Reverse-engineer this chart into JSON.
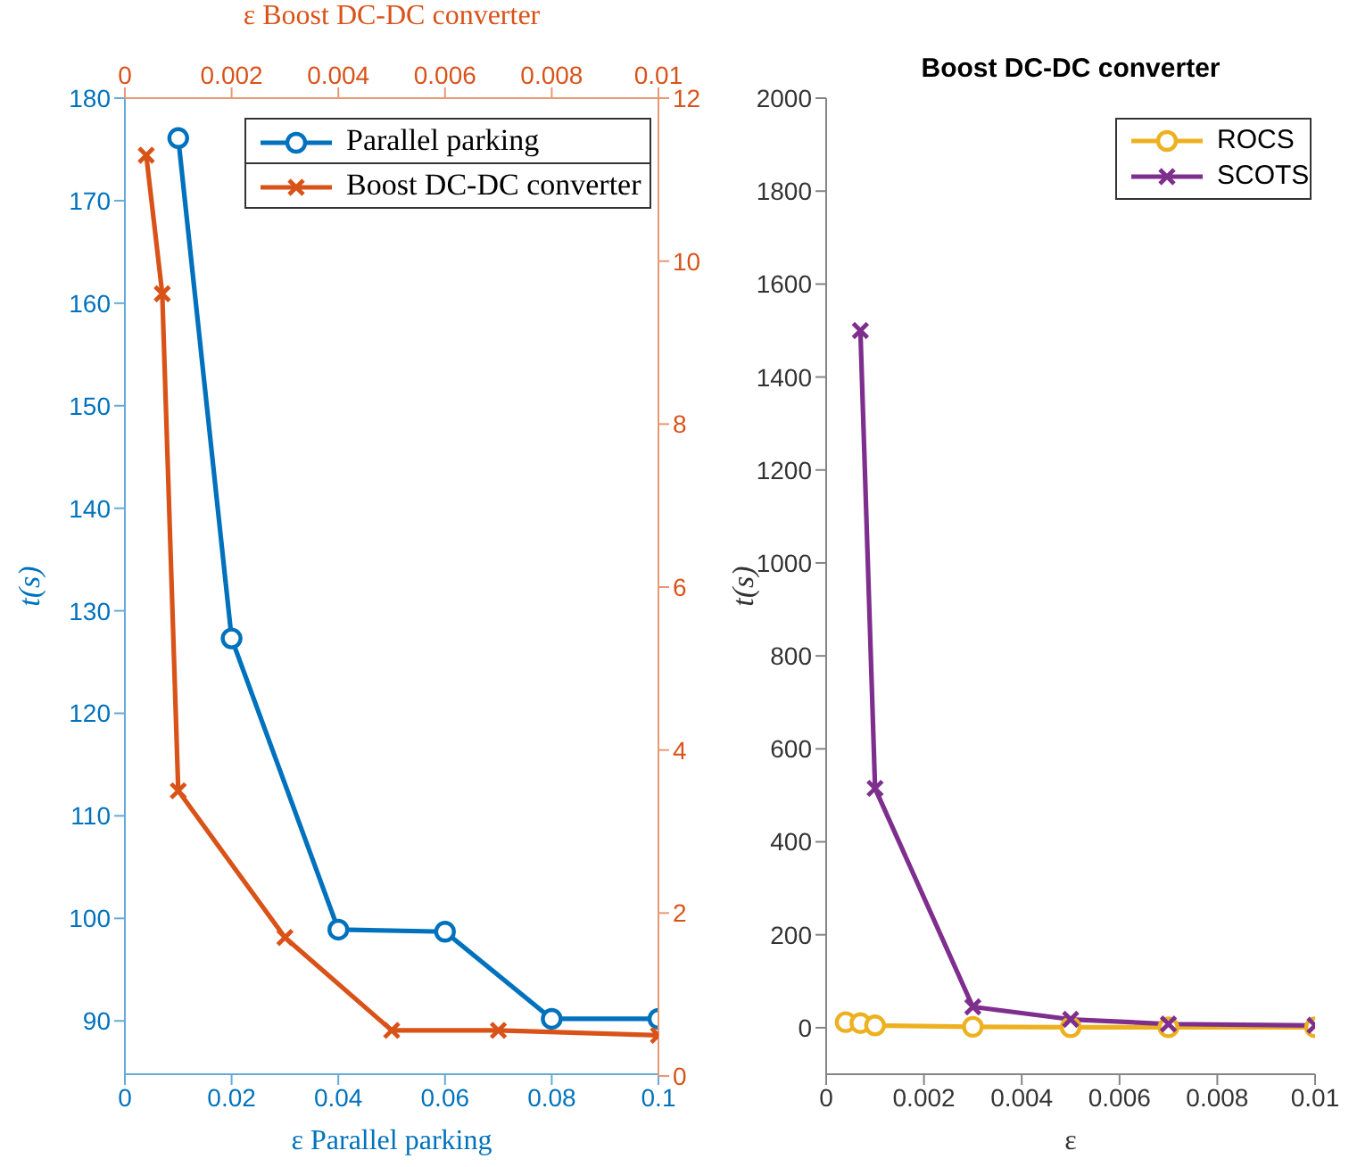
{
  "chart_data": [
    {
      "type": "line",
      "xlabel": "ε Parallel parking",
      "ylabel": "t(s)",
      "xlim": [
        0,
        0.1
      ],
      "xticks": [
        0,
        0.02,
        0.04,
        0.06,
        0.08,
        0.1
      ],
      "ylim": [
        84.8,
        180
      ],
      "yticks": [
        90,
        100,
        110,
        120,
        130,
        140,
        150,
        160,
        170,
        180
      ],
      "legend": "top right",
      "series": [
        {
          "name": "Parallel parking",
          "color": "#0072bd",
          "marker": "circle",
          "x": [
            0.01,
            0.02,
            0.04,
            0.06,
            0.08,
            0.1
          ],
          "values": [
            176.1,
            127.3,
            98.9,
            98.7,
            90.2,
            90.2
          ]
        }
      ]
    },
    {
      "type": "line",
      "xlabel": "ε Boost DC-DC converter",
      "xlim": [
        0,
        0.01
      ],
      "xticks": [
        0,
        0.002,
        0.004,
        0.006,
        0.008,
        0.01
      ],
      "ylim": [
        0,
        12
      ],
      "yticks": [
        0,
        2,
        4,
        6,
        8,
        10,
        12
      ],
      "legend": "top right",
      "series": [
        {
          "name": "Boost DC-DC converter",
          "color": "#d95319",
          "marker": "cross",
          "x": [
            0.0004,
            0.0007,
            0.001,
            0.003,
            0.005,
            0.007,
            0.01
          ],
          "values": [
            11.3,
            9.6,
            3.5,
            1.7,
            0.56,
            0.56,
            0.5
          ]
        }
      ]
    },
    {
      "type": "line",
      "title": "Boost DC-DC converter",
      "xlabel": "ε",
      "ylabel": "t(s)",
      "xlim": [
        0,
        0.01
      ],
      "xticks": [
        0,
        0.002,
        0.004,
        0.006,
        0.008,
        0.01
      ],
      "ylim": [
        -100,
        2000
      ],
      "yticks": [
        0,
        200,
        400,
        600,
        800,
        1000,
        1200,
        1400,
        1600,
        1800,
        2000
      ],
      "legend": "top right",
      "series": [
        {
          "name": "ROCS",
          "color": "#edb120",
          "marker": "circle",
          "x": [
            0.0004,
            0.0007,
            0.001,
            0.003,
            0.005,
            0.007,
            0.01
          ],
          "values": [
            12,
            10,
            5,
            2,
            1,
            1,
            1
          ]
        },
        {
          "name": "SCOTS",
          "color": "#7e2f8e",
          "marker": "cross",
          "x": [
            0.0007,
            0.001,
            0.003,
            0.005,
            0.007,
            0.01
          ],
          "values": [
            1500,
            515,
            45,
            18,
            8,
            5
          ]
        }
      ]
    }
  ]
}
